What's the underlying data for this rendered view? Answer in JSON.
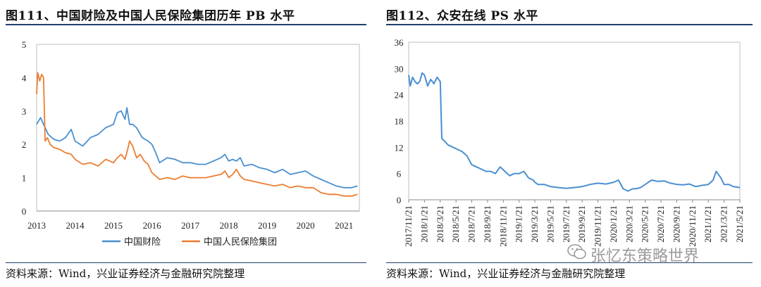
{
  "left": {
    "title": "图111、中国财险及中国人民保险集团历年 PB 水平",
    "source": "资料来源：Wind，兴业证券经济与金融研究院整理"
  },
  "right": {
    "title": "图112、众安在线 PS 水平",
    "source": "资料来源：Wind，兴业证券经济与金融研究院整理"
  },
  "watermark": {
    "text": "张忆东策略世界",
    "icon": "wechat-icon"
  },
  "chart_data": [
    {
      "type": "line",
      "title": "",
      "xlabel": "",
      "ylabel": "",
      "ylim": [
        0,
        5
      ],
      "xlim": [
        2013.0,
        2021.4
      ],
      "yticks": [
        "0",
        "1",
        "2",
        "3",
        "4",
        "5"
      ],
      "xticks": [
        "2013",
        "2014",
        "2015",
        "2016",
        "2017",
        "2018",
        "2019",
        "2020",
        "2021"
      ],
      "grid": false,
      "legend_position": "bottom",
      "series": [
        {
          "name": "中国财险",
          "color": "#4a8fd0",
          "x": [
            2013.0,
            2013.1,
            2013.2,
            2013.3,
            2013.45,
            2013.6,
            2013.75,
            2013.9,
            2014.0,
            2014.2,
            2014.4,
            2014.6,
            2014.8,
            2015.0,
            2015.1,
            2015.2,
            2015.3,
            2015.35,
            2015.42,
            2015.5,
            2015.6,
            2015.75,
            2015.9,
            2016.0,
            2016.1,
            2016.2,
            2016.4,
            2016.6,
            2016.8,
            2017.0,
            2017.2,
            2017.4,
            2017.6,
            2017.8,
            2017.9,
            2018.0,
            2018.1,
            2018.2,
            2018.3,
            2018.4,
            2018.6,
            2018.8,
            2019.0,
            2019.2,
            2019.4,
            2019.6,
            2019.8,
            2020.0,
            2020.2,
            2020.4,
            2020.6,
            2020.8,
            2021.0,
            2021.2,
            2021.35
          ],
          "y": [
            2.6,
            2.8,
            2.55,
            2.3,
            2.15,
            2.1,
            2.2,
            2.45,
            2.1,
            1.95,
            2.2,
            2.3,
            2.5,
            2.6,
            2.95,
            3.0,
            2.75,
            3.1,
            2.6,
            2.6,
            2.5,
            2.2,
            2.1,
            2.0,
            1.75,
            1.45,
            1.6,
            1.55,
            1.45,
            1.45,
            1.4,
            1.4,
            1.5,
            1.6,
            1.7,
            1.5,
            1.55,
            1.5,
            1.6,
            1.35,
            1.4,
            1.3,
            1.25,
            1.15,
            1.25,
            1.1,
            1.15,
            1.2,
            1.05,
            0.95,
            0.85,
            0.75,
            0.7,
            0.7,
            0.75
          ]
        },
        {
          "name": "中国人民保险集团",
          "color": "#ed7d31",
          "x": [
            2013.0,
            2013.03,
            2013.08,
            2013.13,
            2013.18,
            2013.22,
            2013.28,
            2013.35,
            2013.45,
            2013.6,
            2013.75,
            2013.9,
            2014.0,
            2014.2,
            2014.4,
            2014.6,
            2014.8,
            2015.0,
            2015.1,
            2015.2,
            2015.3,
            2015.38,
            2015.42,
            2015.5,
            2015.6,
            2015.7,
            2015.8,
            2015.9,
            2016.0,
            2016.1,
            2016.2,
            2016.4,
            2016.6,
            2016.8,
            2017.0,
            2017.2,
            2017.4,
            2017.6,
            2017.8,
            2017.9,
            2018.0,
            2018.1,
            2018.2,
            2018.3,
            2018.4,
            2018.6,
            2018.8,
            2019.0,
            2019.2,
            2019.4,
            2019.6,
            2019.8,
            2020.0,
            2020.2,
            2020.4,
            2020.6,
            2020.8,
            2021.0,
            2021.2,
            2021.35
          ],
          "y": [
            3.5,
            4.15,
            3.9,
            4.1,
            4.0,
            2.1,
            2.2,
            2.0,
            1.9,
            1.85,
            1.75,
            1.7,
            1.55,
            1.4,
            1.45,
            1.35,
            1.55,
            1.45,
            1.6,
            1.7,
            1.55,
            1.9,
            2.1,
            1.95,
            1.6,
            1.7,
            1.5,
            1.4,
            1.15,
            1.05,
            0.95,
            1.0,
            0.95,
            1.05,
            1.0,
            1.0,
            1.0,
            1.05,
            1.1,
            1.2,
            1.0,
            1.1,
            1.25,
            1.05,
            0.95,
            0.9,
            0.85,
            0.8,
            0.75,
            0.8,
            0.7,
            0.75,
            0.7,
            0.7,
            0.55,
            0.5,
            0.5,
            0.45,
            0.45,
            0.5
          ]
        }
      ]
    },
    {
      "type": "line",
      "title": "",
      "xlabel": "",
      "ylabel": "",
      "ylim": [
        0,
        36
      ],
      "yticks": [
        "0",
        "6",
        "12",
        "18",
        "24",
        "30",
        "36"
      ],
      "categories": [
        "2017/11/21",
        "2018/1/21",
        "2018/3/21",
        "2018/5/21",
        "2018/7/21",
        "2018/9/21",
        "2018/11/21",
        "2019/1/21",
        "2019/3/21",
        "2019/5/21",
        "2019/7/21",
        "2019/9/21",
        "2019/11/21",
        "2020/1/21",
        "2020/3/21",
        "2020/5/21",
        "2020/7/21",
        "2020/9/21",
        "2020/11/21",
        "2021/1/21",
        "2021/3/21",
        "2021/5/21"
      ],
      "grid": false,
      "series": [
        {
          "name": "",
          "color": "#4a8fd0",
          "x": [
            0.0,
            0.1,
            0.25,
            0.4,
            0.55,
            0.7,
            0.85,
            1.0,
            1.2,
            1.4,
            1.6,
            1.8,
            2.0,
            2.1,
            2.25,
            2.5,
            2.8,
            3.1,
            3.4,
            3.7,
            4.0,
            4.3,
            4.6,
            4.9,
            5.2,
            5.5,
            5.8,
            6.1,
            6.4,
            6.7,
            7.0,
            7.3,
            7.6,
            7.9,
            8.0,
            8.2,
            8.6,
            9.0,
            9.5,
            10.0,
            10.5,
            11.0,
            11.5,
            12.0,
            12.5,
            13.0,
            13.3,
            13.6,
            13.9,
            14.2,
            14.4,
            14.7,
            15.0,
            15.4,
            15.8,
            16.2,
            16.6,
            17.0,
            17.4,
            17.8,
            18.2,
            18.6,
            19.0,
            19.3,
            19.5,
            19.8,
            20.0,
            20.3,
            20.6,
            21.0
          ],
          "y": [
            28.5,
            26.0,
            28.0,
            27.0,
            26.5,
            27.0,
            29.0,
            28.5,
            26.0,
            27.5,
            26.5,
            28.0,
            27.0,
            14.0,
            13.5,
            12.5,
            12.0,
            11.5,
            11.0,
            10.0,
            8.0,
            7.5,
            7.0,
            6.5,
            6.5,
            6.0,
            7.5,
            6.5,
            5.5,
            6.0,
            6.0,
            6.5,
            5.0,
            4.5,
            4.0,
            3.5,
            3.5,
            3.0,
            2.8,
            2.6,
            2.8,
            3.0,
            3.5,
            3.8,
            3.6,
            4.0,
            4.5,
            2.5,
            2.0,
            2.5,
            2.5,
            2.8,
            3.5,
            4.5,
            4.2,
            4.3,
            3.8,
            3.5,
            3.4,
            3.6,
            3.0,
            3.3,
            3.5,
            4.5,
            6.5,
            5.0,
            3.5,
            3.5,
            3.0,
            2.8
          ]
        }
      ]
    }
  ]
}
